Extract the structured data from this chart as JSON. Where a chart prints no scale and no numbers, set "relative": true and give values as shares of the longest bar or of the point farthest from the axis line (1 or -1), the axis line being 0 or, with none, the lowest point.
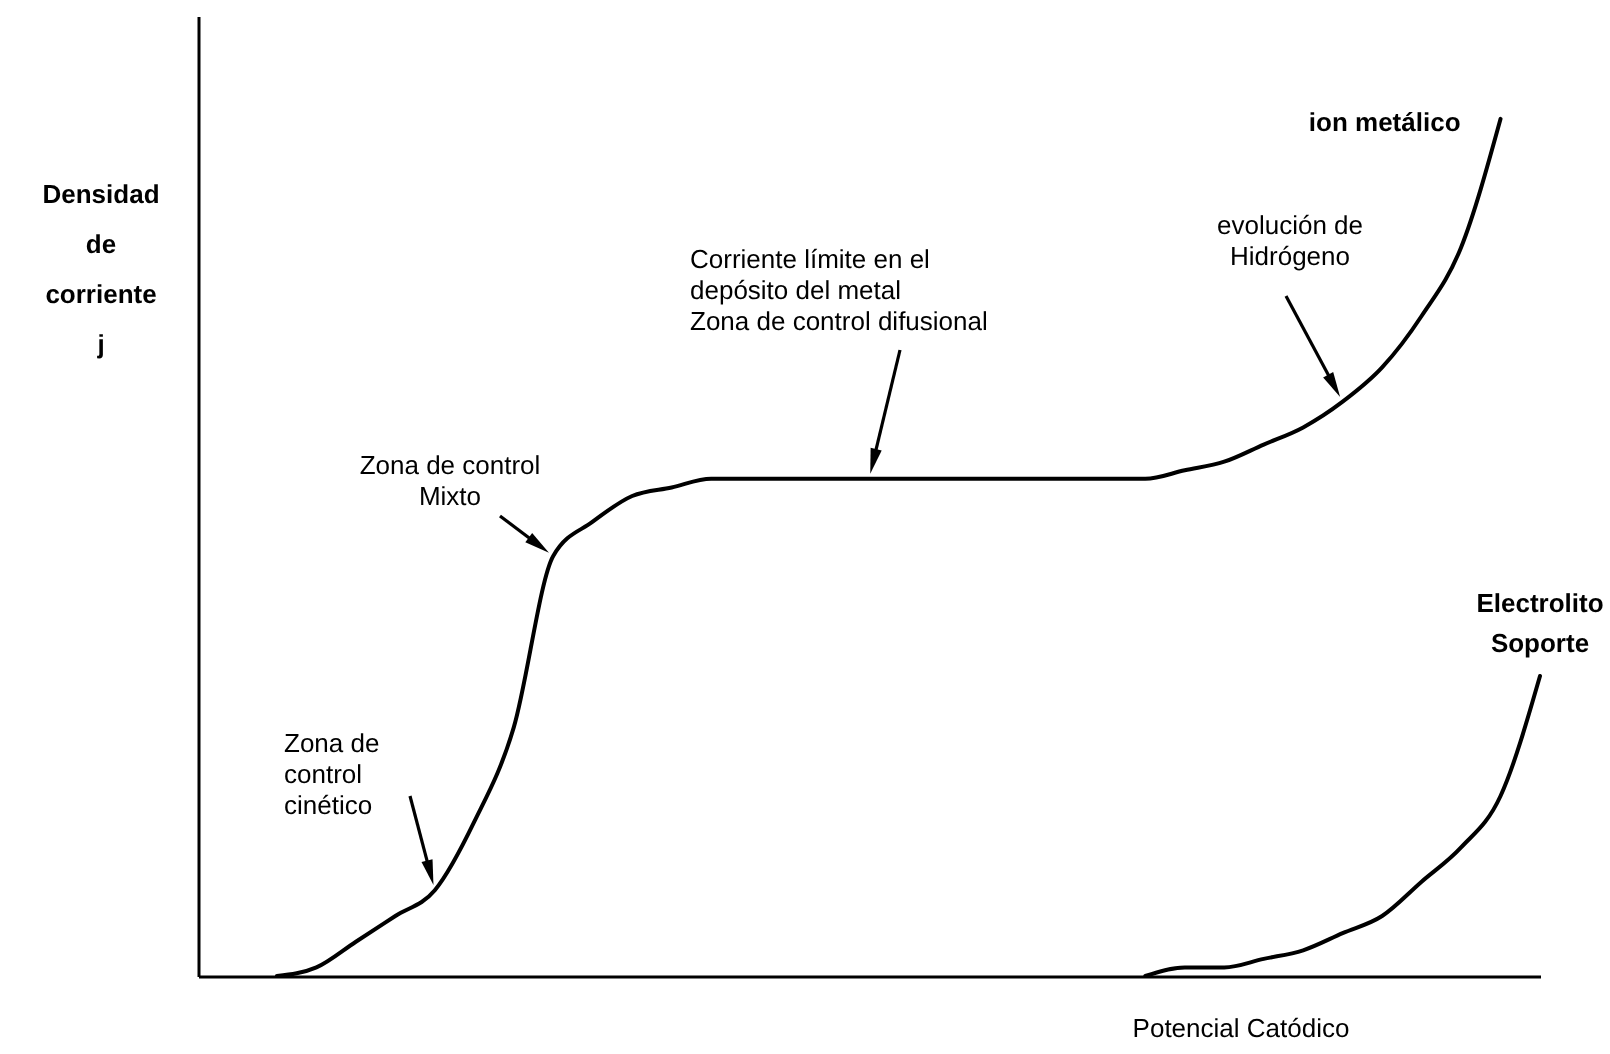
{
  "chart_data": {
    "type": "line",
    "relative": true,
    "xlabel": "Potencial  Catódico",
    "ylabel": "Densidad de corriente j",
    "categories": [
      null,
      null,
      null,
      null,
      null,
      null,
      null,
      null,
      null,
      null,
      null,
      null,
      null,
      null,
      null,
      null,
      null,
      null,
      null,
      null,
      null,
      null,
      null,
      null,
      null,
      null,
      null,
      null,
      null,
      null,
      null,
      null,
      null,
      null,
      null
    ],
    "series": [
      {
        "name": "ion metálico",
        "color": "#000000",
        "values": [
          null,
          null,
          0.0,
          0.01,
          0.04,
          0.07,
          0.1,
          0.18,
          0.29,
          0.49,
          0.53,
          0.56,
          0.57,
          0.58,
          0.58,
          0.58,
          0.58,
          0.58,
          0.58,
          0.58,
          0.58,
          0.58,
          0.58,
          0.58,
          0.58,
          0.59,
          0.6,
          0.62,
          0.64,
          0.67,
          0.71,
          0.77,
          0.85,
          1.0,
          null
        ]
      },
      {
        "name": "Electrolito Soporte",
        "color": "#000000",
        "values": [
          null,
          null,
          null,
          null,
          null,
          null,
          null,
          null,
          null,
          null,
          null,
          null,
          null,
          null,
          null,
          null,
          null,
          null,
          null,
          null,
          null,
          null,
          null,
          null,
          0.0,
          0.01,
          0.01,
          0.02,
          0.03,
          0.05,
          0.07,
          0.11,
          0.15,
          0.21,
          0.35
        ]
      }
    ],
    "annotations": [
      "Zona de control cinético",
      "Zona de control Mixto",
      "Corriente límite en el depósito del metal Zona de control difusional",
      "evolución de Hidrógeno"
    ],
    "tick_labels": false,
    "line_style": "solid"
  }
}
